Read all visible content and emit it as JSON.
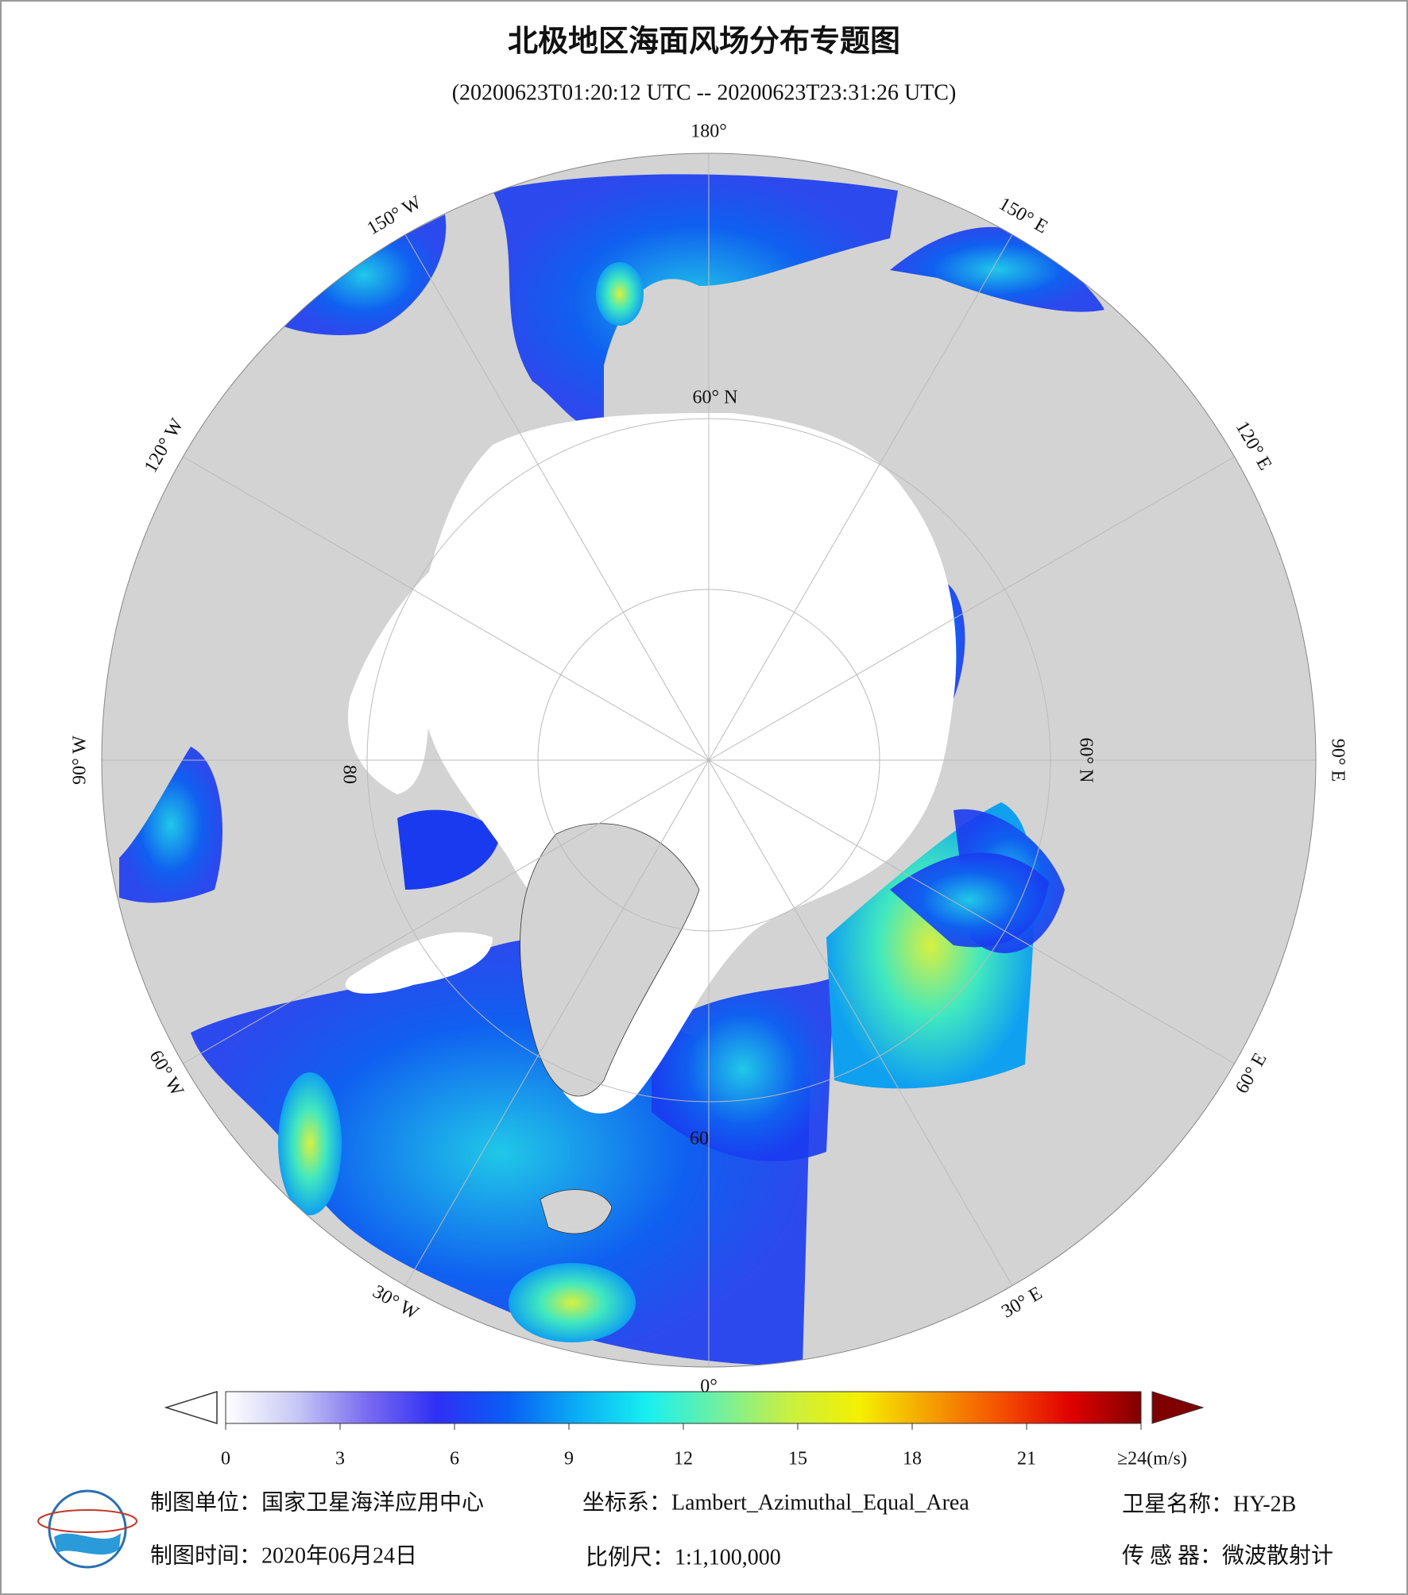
{
  "header": {
    "title": "北极地区海面风场分布专题图",
    "subtitle": "(20200623T01:20:12 UTC -- 20200623T23:31:26 UTC)"
  },
  "map": {
    "lon_labels": [
      "180°",
      "150° W",
      "120° W",
      "90° W",
      "60° W",
      "30° W",
      "0°",
      "30° E",
      "60° E",
      "90° E",
      "120° E",
      "150° E"
    ],
    "lat_labels": [
      "60° N",
      "60° N",
      "60",
      "80"
    ]
  },
  "colorbar": {
    "lim": [
      0,
      24
    ],
    "ticks": [
      0,
      3,
      6,
      9,
      12,
      15,
      18,
      21,
      {
        "value": 24,
        "label": "≥24(m/s)"
      }
    ],
    "colors": [
      "#ffffff",
      "#c8c8f5",
      "#7a6cf0",
      "#2f2ff5",
      "#0a5ef5",
      "#0aaef5",
      "#18f0f0",
      "#70f0a0",
      "#c8f040",
      "#f5f000",
      "#f5a000",
      "#f55000",
      "#e00000",
      "#800000"
    ]
  },
  "footer": {
    "unit": "制图单位：国家卫星海洋应用中心",
    "crs": "坐标系：Lambert_Azimuthal_Equal_Area",
    "satellite": "卫星名称：HY-2B",
    "date": "制图时间：2020年06月24日",
    "scale": "比例尺：1:1,100,000",
    "sensor": "传 感 器：微波散射计"
  }
}
